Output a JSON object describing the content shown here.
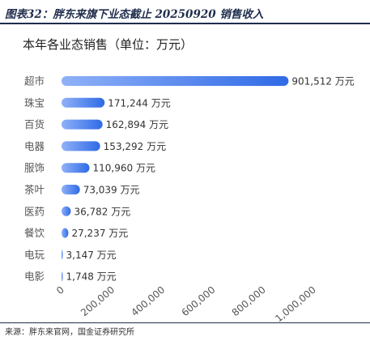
{
  "figure_title": "图表32：胖东来旗下业态截止 20250920 销售收入",
  "source_text": "来源：胖东来官网，国金证券研究所",
  "chart_data": {
    "type": "bar",
    "orientation": "horizontal",
    "title": "本年各业态销售（单位：万元）",
    "categories": [
      "超市",
      "珠宝",
      "百货",
      "电器",
      "服饰",
      "茶叶",
      "医药",
      "餐饮",
      "电玩",
      "电影"
    ],
    "values": [
      901512,
      171244,
      162894,
      153292,
      110960,
      73039,
      36782,
      27237,
      3147,
      1748
    ],
    "data_labels": [
      "901,512 万元",
      "171,244 万元",
      "162,894 万元",
      "153,292 万元",
      "110,960 万元",
      "73,039 万元",
      "36,782 万元",
      "27,237 万元",
      "3,147 万元",
      "1,748 万元"
    ],
    "xlim": [
      0,
      1000000
    ],
    "x_ticks": [
      0,
      200000,
      400000,
      600000,
      800000,
      1000000
    ],
    "x_tick_labels": [
      "0",
      "200,000",
      "400,000",
      "600,000",
      "800,000",
      "1,000,000"
    ],
    "grid": false,
    "bar_color_start": "#8fb1f7",
    "bar_color_end": "#2f6ae6"
  }
}
